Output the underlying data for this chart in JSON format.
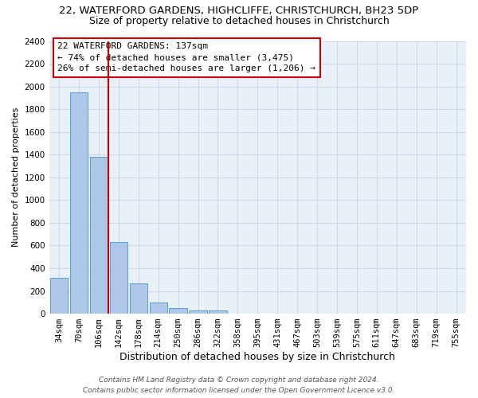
{
  "title_line1": "22, WATERFORD GARDENS, HIGHCLIFFE, CHRISTCHURCH, BH23 5DP",
  "title_line2": "Size of property relative to detached houses in Christchurch",
  "xlabel": "Distribution of detached houses by size in Christchurch",
  "ylabel": "Number of detached properties",
  "bar_labels": [
    "34sqm",
    "70sqm",
    "106sqm",
    "142sqm",
    "178sqm",
    "214sqm",
    "250sqm",
    "286sqm",
    "322sqm",
    "358sqm",
    "395sqm",
    "431sqm",
    "467sqm",
    "503sqm",
    "539sqm",
    "575sqm",
    "611sqm",
    "647sqm",
    "683sqm",
    "719sqm",
    "755sqm"
  ],
  "bar_values": [
    315,
    1950,
    1380,
    630,
    270,
    100,
    48,
    32,
    28,
    0,
    0,
    0,
    0,
    0,
    0,
    0,
    0,
    0,
    0,
    0,
    0
  ],
  "bar_color": "#aec6e8",
  "bar_edge_color": "#5a9fd4",
  "property_line_x": 2.5,
  "annotation_title": "22 WATERFORD GARDENS: 137sqm",
  "annotation_line2": "← 74% of detached houses are smaller (3,475)",
  "annotation_line3": "26% of semi-detached houses are larger (1,206) →",
  "annotation_box_color": "#ffffff",
  "annotation_border_color": "#cc0000",
  "vline_color": "#cc0000",
  "grid_color": "#d0d8e8",
  "background_color": "#eaf0f8",
  "ylim": [
    0,
    2400
  ],
  "yticks": [
    0,
    200,
    400,
    600,
    800,
    1000,
    1200,
    1400,
    1600,
    1800,
    2000,
    2200,
    2400
  ],
  "footer_line1": "Contains HM Land Registry data © Crown copyright and database right 2024.",
  "footer_line2": "Contains public sector information licensed under the Open Government Licence v3.0.",
  "title1_fontsize": 9.5,
  "title2_fontsize": 9,
  "xlabel_fontsize": 9,
  "ylabel_fontsize": 8,
  "tick_fontsize": 7.5,
  "annotation_fontsize": 8,
  "footer_fontsize": 6.5
}
